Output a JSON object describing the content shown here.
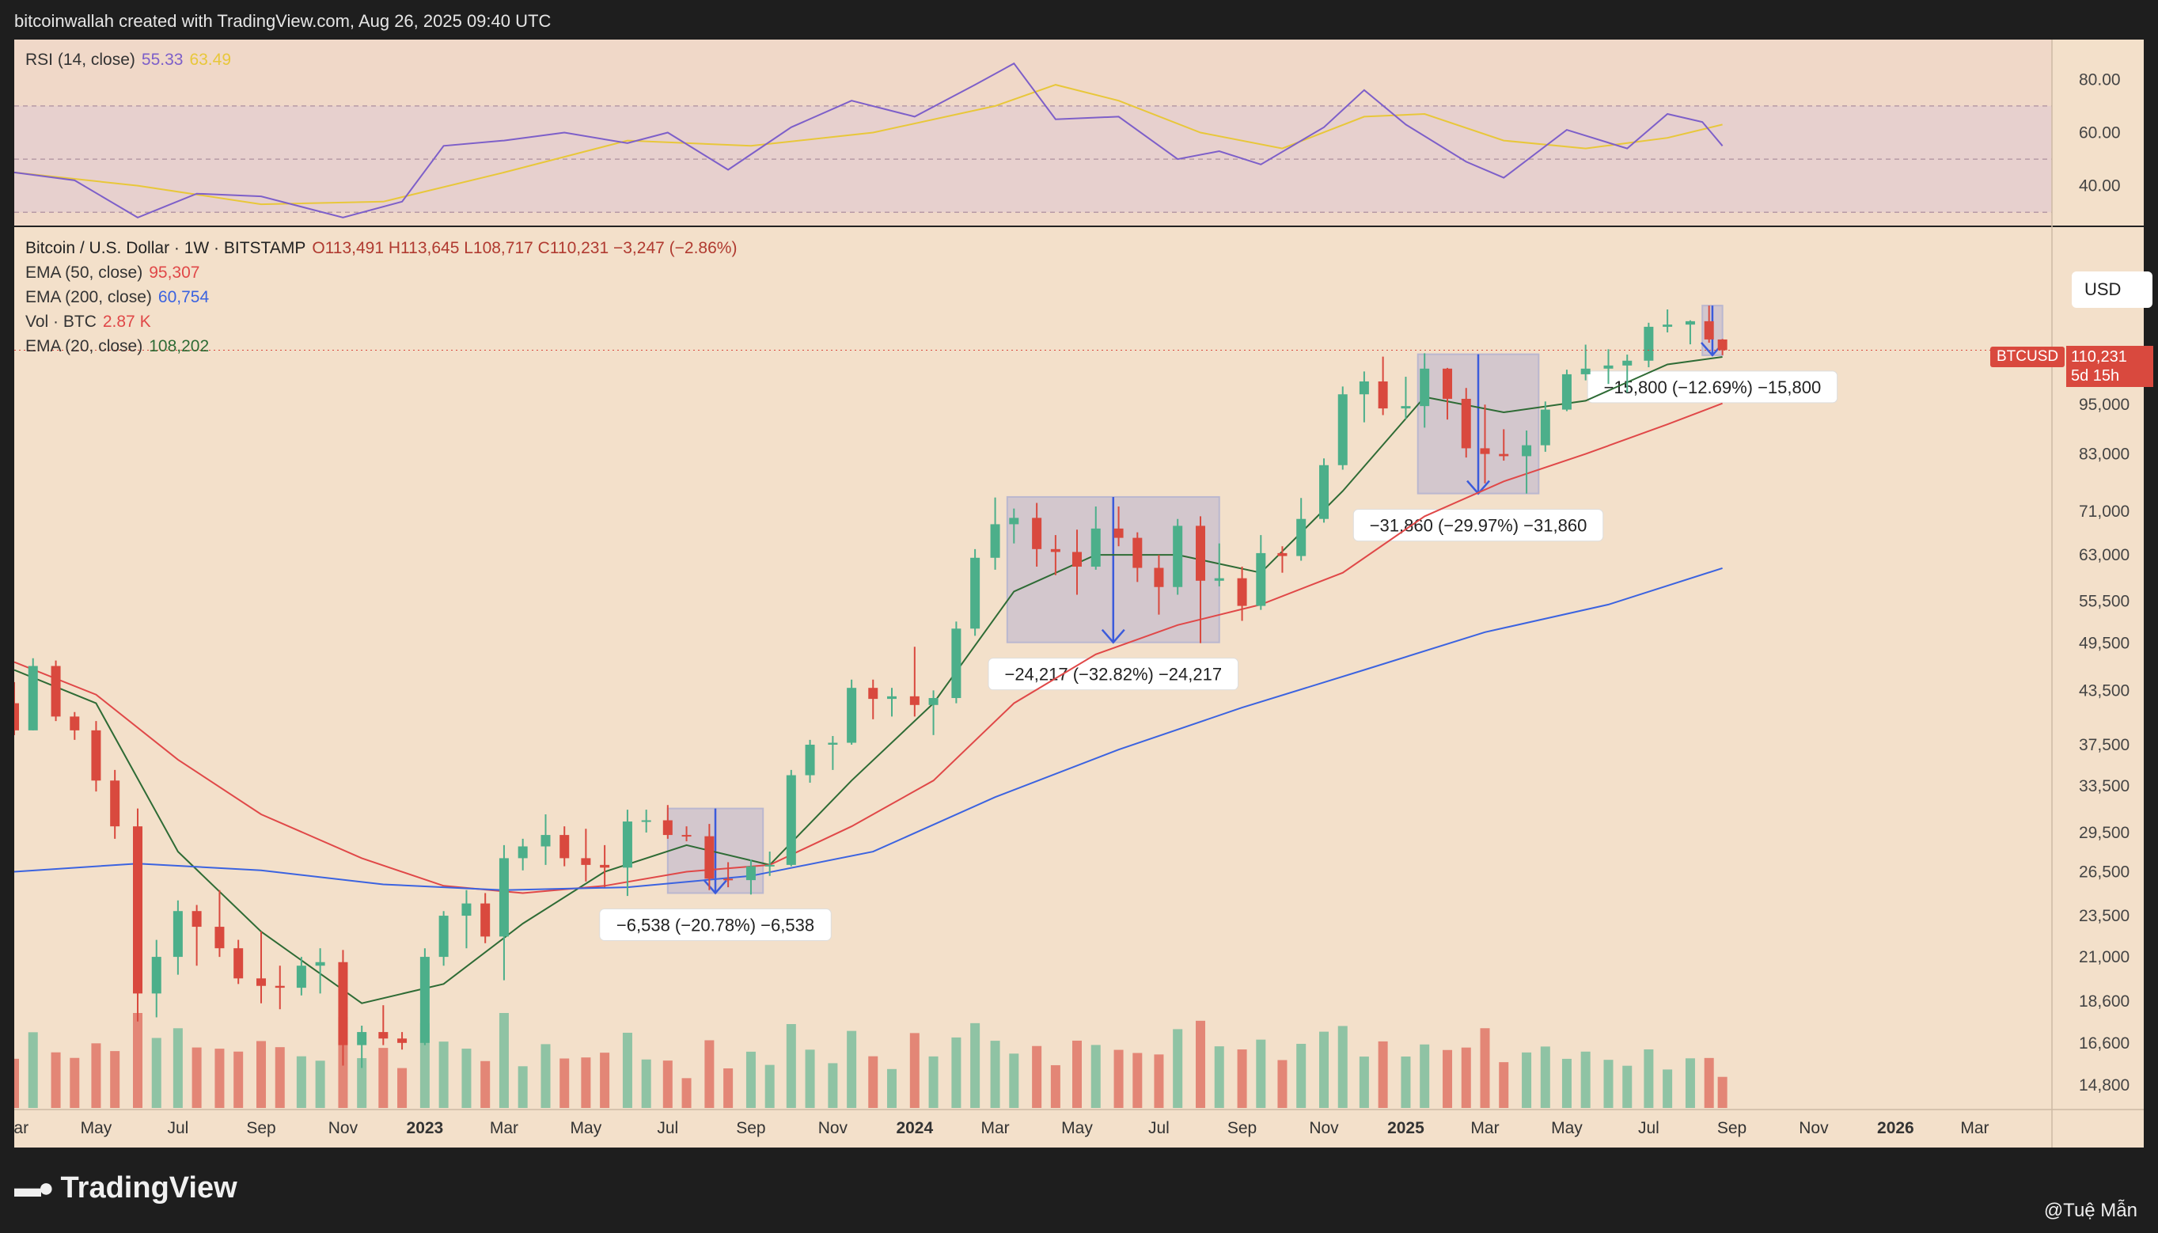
{
  "header": {
    "caption": "bitcoinwallah created with TradingView.com, Aug 26, 2025 09:40 UTC"
  },
  "footer": {
    "logo": "TradingView",
    "credit": "@Tuệ Mẫn"
  },
  "rsi": {
    "label": "RSI (14, close)",
    "value": "55.33",
    "ma_value": "63.49",
    "ticks": [
      "80.00",
      "60.00",
      "40.00"
    ]
  },
  "legend": {
    "title": "Bitcoin / U.S. Dollar · 1W · BITSTAMP",
    "ohlc": "O113,491  H113,645  L108,717  C110,231  −3,247 (−2.86%)",
    "ema50_label": "EMA (50, close)",
    "ema50_value": "95,307",
    "ema200_label": "EMA (200, close)",
    "ema200_value": "60,754",
    "vol_label": "Vol · BTC",
    "vol_value": "2.87 K",
    "ema20_label": "EMA (20, close)",
    "ema20_value": "108,202"
  },
  "currency": "USD",
  "symbol_tag": "BTCUSD",
  "last_price": "110,231",
  "countdown": "5d 15h",
  "colors": {
    "background": "#f3e0ca",
    "bull": "#4caf8a",
    "bear": "#d9493e",
    "ema20": "#2e6b35",
    "ema50": "#e04848",
    "ema200": "#3b63e0",
    "rsi": "#7d5fc9",
    "rsi_ma": "#e8c73a",
    "box": "#3b5bdb"
  },
  "chart_data": {
    "type": "candlestick",
    "interval": "1W",
    "y_scale": "log",
    "y_ticks": [
      "95,000",
      "83,000",
      "71,000",
      "63,000",
      "55,500",
      "49,500",
      "43,500",
      "37,500",
      "33,500",
      "29,500",
      "26,500",
      "23,500",
      "21,000",
      "18,600",
      "16,600",
      "14,800"
    ],
    "x_ticks": [
      "Mar",
      "May",
      "Jul",
      "Sep",
      "Nov",
      "2023",
      "Mar",
      "May",
      "Jul",
      "Sep",
      "Nov",
      "2024",
      "Mar",
      "May",
      "Jul",
      "Sep",
      "Nov",
      "2025",
      "Mar",
      "May",
      "Jul",
      "Sep",
      "Nov",
      "2026",
      "Mar"
    ],
    "x_tick_bold": [
      "2023",
      "2024",
      "2025",
      "2026"
    ],
    "series": [
      {
        "name": "EMA (20, close)",
        "points": [
          [
            "2022-03-01",
            46000
          ],
          [
            "2022-05-01",
            42000
          ],
          [
            "2022-07-01",
            28000
          ],
          [
            "2022-09-01",
            22500
          ],
          [
            "2022-11-15",
            18500
          ],
          [
            "2023-01-15",
            19500
          ],
          [
            "2023-03-15",
            23000
          ],
          [
            "2023-05-15",
            26500
          ],
          [
            "2023-07-15",
            28500
          ],
          [
            "2023-09-15",
            27000
          ],
          [
            "2023-11-15",
            34000
          ],
          [
            "2024-01-15",
            42000
          ],
          [
            "2024-03-15",
            57000
          ],
          [
            "2024-05-15",
            63000
          ],
          [
            "2024-07-15",
            63000
          ],
          [
            "2024-09-15",
            60000
          ],
          [
            "2024-11-15",
            75000
          ],
          [
            "2025-01-15",
            97000
          ],
          [
            "2025-03-15",
            93000
          ],
          [
            "2025-05-15",
            96000
          ],
          [
            "2025-07-15",
            106000
          ],
          [
            "2025-08-25",
            108202
          ]
        ]
      },
      {
        "name": "EMA (50, close)",
        "points": [
          [
            "2022-03-01",
            47000
          ],
          [
            "2022-05-01",
            43000
          ],
          [
            "2022-07-01",
            36000
          ],
          [
            "2022-09-01",
            31000
          ],
          [
            "2022-11-15",
            27500
          ],
          [
            "2023-01-15",
            25500
          ],
          [
            "2023-03-15",
            25000
          ],
          [
            "2023-05-15",
            25500
          ],
          [
            "2023-07-15",
            26500
          ],
          [
            "2023-09-15",
            27000
          ],
          [
            "2023-11-15",
            30000
          ],
          [
            "2024-01-15",
            34000
          ],
          [
            "2024-03-15",
            42000
          ],
          [
            "2024-05-15",
            48000
          ],
          [
            "2024-07-15",
            52000
          ],
          [
            "2024-09-15",
            55000
          ],
          [
            "2024-11-15",
            60000
          ],
          [
            "2025-01-15",
            70000
          ],
          [
            "2025-03-15",
            77000
          ],
          [
            "2025-05-15",
            83000
          ],
          [
            "2025-07-15",
            90000
          ],
          [
            "2025-08-25",
            95307
          ]
        ]
      },
      {
        "name": "EMA (200, close)",
        "points": [
          [
            "2022-03-01",
            26500
          ],
          [
            "2022-06-01",
            27100
          ],
          [
            "2022-09-01",
            26600
          ],
          [
            "2022-12-01",
            25600
          ],
          [
            "2023-03-01",
            25200
          ],
          [
            "2023-06-01",
            25400
          ],
          [
            "2023-09-01",
            26200
          ],
          [
            "2023-12-01",
            28000
          ],
          [
            "2024-03-01",
            32500
          ],
          [
            "2024-06-01",
            37000
          ],
          [
            "2024-09-01",
            41500
          ],
          [
            "2024-12-01",
            46000
          ],
          [
            "2025-03-01",
            51000
          ],
          [
            "2025-06-01",
            55000
          ],
          [
            "2025-08-25",
            60754
          ]
        ]
      }
    ],
    "candles": [
      [
        "2022-03-01",
        42000,
        44500,
        38500,
        39000
      ],
      [
        "2022-03-15",
        39000,
        47500,
        39000,
        46500
      ],
      [
        "2022-04-01",
        46500,
        47200,
        40000,
        40500
      ],
      [
        "2022-04-15",
        40500,
        41000,
        38000,
        39000
      ],
      [
        "2022-05-01",
        39000,
        40000,
        33000,
        34000
      ],
      [
        "2022-05-15",
        34000,
        35000,
        29000,
        30000
      ],
      [
        "2022-06-01",
        30000,
        31500,
        17600,
        19000
      ],
      [
        "2022-06-15",
        19000,
        22000,
        17800,
        21000
      ],
      [
        "2022-07-01",
        21000,
        24500,
        20000,
        23800
      ],
      [
        "2022-07-15",
        23800,
        24200,
        20500,
        22800
      ],
      [
        "2022-08-01",
        22800,
        25200,
        21000,
        21500
      ],
      [
        "2022-08-15",
        21500,
        22000,
        19500,
        19800
      ],
      [
        "2022-09-01",
        19800,
        22500,
        18500,
        19400
      ],
      [
        "2022-09-15",
        19400,
        20500,
        18200,
        19300
      ],
      [
        "2022-10-01",
        19300,
        21000,
        18900,
        20500
      ],
      [
        "2022-10-15",
        20500,
        21500,
        19000,
        20700
      ],
      [
        "2022-11-01",
        20700,
        21400,
        15600,
        16500
      ],
      [
        "2022-11-15",
        16500,
        17400,
        15500,
        17100
      ],
      [
        "2022-12-01",
        17100,
        18400,
        16500,
        16800
      ],
      [
        "2022-12-15",
        16800,
        17100,
        16300,
        16600
      ],
      [
        "2023-01-01",
        16600,
        21500,
        16500,
        21000
      ],
      [
        "2023-01-15",
        21000,
        23800,
        20500,
        23500
      ],
      [
        "2023-02-01",
        23500,
        25200,
        21500,
        24300
      ],
      [
        "2023-02-15",
        24300,
        25000,
        21800,
        22200
      ],
      [
        "2023-03-01",
        22200,
        28500,
        19700,
        27500
      ],
      [
        "2023-03-15",
        27500,
        29000,
        26600,
        28400
      ],
      [
        "2023-04-01",
        28400,
        31000,
        27000,
        29300
      ],
      [
        "2023-04-15",
        29300,
        30000,
        26900,
        27500
      ],
      [
        "2023-05-01",
        27500,
        29800,
        25800,
        27000
      ],
      [
        "2023-05-15",
        27000,
        28500,
        25400,
        26800
      ],
      [
        "2023-06-01",
        26800,
        31400,
        24800,
        30400
      ],
      [
        "2023-06-15",
        30400,
        31400,
        29500,
        30500
      ],
      [
        "2023-07-01",
        30500,
        31800,
        29000,
        29300
      ],
      [
        "2023-07-15",
        29300,
        30000,
        28800,
        29200
      ],
      [
        "2023-08-01",
        29200,
        30200,
        25200,
        26000
      ],
      [
        "2023-08-15",
        26000,
        27200,
        25400,
        25900
      ],
      [
        "2023-09-01",
        25900,
        27400,
        24900,
        26900
      ],
      [
        "2023-09-15",
        26900,
        28000,
        26200,
        27000
      ],
      [
        "2023-10-01",
        27000,
        35000,
        26900,
        34500
      ],
      [
        "2023-10-15",
        34500,
        38000,
        33800,
        37500
      ],
      [
        "2023-11-01",
        37500,
        38400,
        35000,
        37700
      ],
      [
        "2023-11-15",
        37700,
        44800,
        37500,
        43800
      ],
      [
        "2023-12-01",
        43800,
        44800,
        40200,
        42500
      ],
      [
        "2023-12-15",
        42500,
        43800,
        40500,
        42800
      ],
      [
        "2024-01-01",
        42800,
        49000,
        40500,
        41800
      ],
      [
        "2024-01-15",
        41800,
        43500,
        38500,
        42600
      ],
      [
        "2024-02-01",
        42600,
        52500,
        42000,
        51500
      ],
      [
        "2024-02-15",
        51500,
        64000,
        50500,
        62500
      ],
      [
        "2024-03-01",
        62500,
        73700,
        60500,
        68500
      ],
      [
        "2024-03-15",
        68500,
        71500,
        65000,
        69700
      ],
      [
        "2024-04-01",
        69700,
        72600,
        61000,
        64000
      ],
      [
        "2024-04-15",
        64000,
        66500,
        59600,
        63500
      ],
      [
        "2024-05-01",
        63500,
        67500,
        56500,
        61000
      ],
      [
        "2024-05-15",
        61000,
        71900,
        60500,
        67700
      ],
      [
        "2024-06-01",
        67700,
        71900,
        64500,
        66000
      ],
      [
        "2024-06-15",
        66000,
        67000,
        58500,
        60800
      ],
      [
        "2024-07-01",
        60800,
        63000,
        53500,
        57700
      ],
      [
        "2024-07-15",
        57700,
        69500,
        56500,
        68200
      ],
      [
        "2024-08-01",
        68200,
        70000,
        49500,
        58700
      ],
      [
        "2024-08-15",
        58700,
        65000,
        57800,
        59100
      ],
      [
        "2024-09-01",
        59100,
        61000,
        52600,
        54800
      ],
      [
        "2024-09-15",
        54800,
        66500,
        54200,
        63300
      ],
      [
        "2024-10-01",
        63300,
        64500,
        60000,
        62800
      ],
      [
        "2024-10-15",
        62800,
        73600,
        62000,
        69500
      ],
      [
        "2024-11-01",
        69500,
        82000,
        68800,
        80500
      ],
      [
        "2024-11-15",
        80500,
        99800,
        79500,
        97700
      ],
      [
        "2024-12-01",
        97700,
        104000,
        90500,
        101200
      ],
      [
        "2024-12-15",
        101200,
        108300,
        92300,
        94000
      ],
      [
        "2025-01-01",
        94000,
        102500,
        91300,
        94600
      ],
      [
        "2025-01-15",
        94600,
        109300,
        89200,
        104800
      ],
      [
        "2025-02-01",
        104800,
        105000,
        91200,
        96500
      ],
      [
        "2025-02-15",
        96500,
        99400,
        82200,
        84300
      ],
      [
        "2025-03-01",
        84300,
        95000,
        76600,
        83000
      ],
      [
        "2025-03-15",
        83000,
        88800,
        81500,
        82500
      ],
      [
        "2025-04-01",
        82500,
        88500,
        74500,
        85000
      ],
      [
        "2025-04-15",
        85000,
        95800,
        83500,
        93700
      ],
      [
        "2025-05-01",
        93700,
        104500,
        93300,
        103200
      ],
      [
        "2025-05-15",
        103200,
        111900,
        101500,
        104800
      ],
      [
        "2025-06-01",
        104800,
        110500,
        100500,
        105700
      ],
      [
        "2025-06-15",
        105700,
        108900,
        98200,
        107100
      ],
      [
        "2025-07-01",
        107100,
        118800,
        105200,
        117500
      ],
      [
        "2025-07-15",
        117500,
        123200,
        115700,
        118200
      ],
      [
        "2025-08-01",
        118200,
        119600,
        112000,
        119300
      ],
      [
        "2025-08-15",
        119300,
        124500,
        112500,
        113500
      ],
      [
        "2025-08-25",
        113491,
        113645,
        108717,
        110231
      ]
    ],
    "volume_ticks_note": "volume bars at bottom, green/red by candle direction",
    "annotations": [
      {
        "label": "−6,538 (−20.78%) −6,538",
        "from_date": "2023-07-01",
        "to_date": "2023-09-10",
        "high": 31500,
        "low": 25000
      },
      {
        "label": "−24,217 (−32.82%) −24,217",
        "from_date": "2024-03-10",
        "to_date": "2024-08-15",
        "high": 73800,
        "low": 49600
      },
      {
        "label": "−31,860 (−29.97%) −31,860",
        "from_date": "2025-01-10",
        "to_date": "2025-04-10",
        "high": 109000,
        "low": 74500
      },
      {
        "label": "−15,800 (−12.69%) −15,800",
        "from_date": "2025-08-10",
        "to_date": "2025-08-25",
        "high": 124500,
        "low": 108700
      }
    ],
    "rsi": {
      "levels": [
        70,
        50,
        30
      ],
      "range": [
        25,
        95
      ],
      "points": [
        [
          "2022-03-01",
          45
        ],
        [
          "2022-04-15",
          42
        ],
        [
          "2022-06-01",
          28
        ],
        [
          "2022-07-15",
          37
        ],
        [
          "2022-09-01",
          36
        ],
        [
          "2022-11-01",
          28
        ],
        [
          "2022-12-15",
          34
        ],
        [
          "2023-01-15",
          55
        ],
        [
          "2023-03-01",
          57
        ],
        [
          "2023-04-15",
          60
        ],
        [
          "2023-06-01",
          56
        ],
        [
          "2023-07-01",
          60
        ],
        [
          "2023-08-15",
          46
        ],
        [
          "2023-10-01",
          62
        ],
        [
          "2023-11-15",
          72
        ],
        [
          "2024-01-01",
          66
        ],
        [
          "2024-02-15",
          78
        ],
        [
          "2024-03-15",
          86
        ],
        [
          "2024-04-15",
          65
        ],
        [
          "2024-06-01",
          66
        ],
        [
          "2024-07-15",
          50
        ],
        [
          "2024-08-15",
          53
        ],
        [
          "2024-09-15",
          48
        ],
        [
          "2024-11-01",
          62
        ],
        [
          "2024-12-01",
          76
        ],
        [
          "2025-01-01",
          63
        ],
        [
          "2025-02-15",
          49
        ],
        [
          "2025-03-15",
          43
        ],
        [
          "2025-05-01",
          61
        ],
        [
          "2025-06-15",
          54
        ],
        [
          "2025-07-15",
          67
        ],
        [
          "2025-08-10",
          64
        ],
        [
          "2025-08-25",
          55
        ]
      ],
      "ma_points": [
        [
          "2022-03-01",
          45
        ],
        [
          "2022-06-01",
          40
        ],
        [
          "2022-09-01",
          33
        ],
        [
          "2022-12-01",
          34
        ],
        [
          "2023-03-01",
          45
        ],
        [
          "2023-06-01",
          57
        ],
        [
          "2023-09-01",
          55
        ],
        [
          "2023-12-01",
          60
        ],
        [
          "2024-03-01",
          70
        ],
        [
          "2024-04-15",
          78
        ],
        [
          "2024-06-01",
          72
        ],
        [
          "2024-08-01",
          60
        ],
        [
          "2024-10-01",
          54
        ],
        [
          "2024-12-01",
          66
        ],
        [
          "2025-01-15",
          67
        ],
        [
          "2025-03-15",
          57
        ],
        [
          "2025-05-15",
          54
        ],
        [
          "2025-07-15",
          58
        ],
        [
          "2025-08-25",
          63
        ]
      ]
    }
  }
}
